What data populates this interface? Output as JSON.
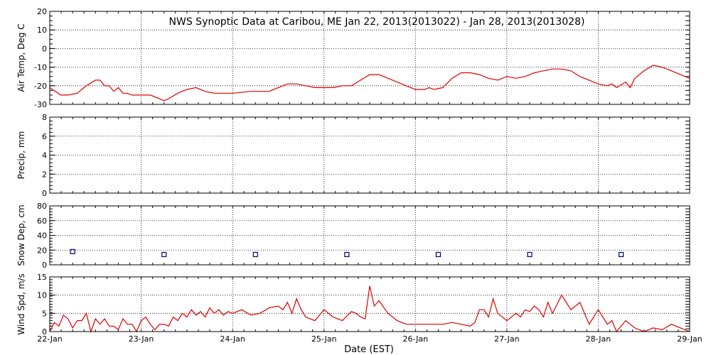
{
  "chart_data": {
    "type": "line",
    "title": "NWS Synoptic Data at Caribou, ME   Jan 22, 2013(2013022) - Jan 28, 2013(2013028)",
    "xlabel": "Date (EST)",
    "x_ticks": [
      "22-Jan",
      "23-Jan",
      "24-Jan",
      "25-Jan",
      "26-Jan",
      "27-Jan",
      "28-Jan",
      "29-Jan"
    ],
    "xlim_days": [
      0,
      7
    ],
    "grid": true,
    "colors": {
      "line": "#e00000",
      "marker": "#000080",
      "axis": "#000000"
    },
    "panels": [
      {
        "ylabel": "Air Temp, Deg C",
        "ylim": [
          -30,
          20
        ],
        "yticks": [
          20,
          10,
          0,
          -10,
          -20,
          -30
        ],
        "series": [
          {
            "style": "line",
            "x": [
              0,
              0.12,
              0.2,
              0.3,
              0.4,
              0.5,
              0.55,
              0.6,
              0.65,
              0.7,
              0.75,
              0.8,
              0.85,
              0.9,
              1.0,
              1.1,
              1.2,
              1.25,
              1.3,
              1.4,
              1.5,
              1.6,
              1.7,
              1.8,
              1.9,
              2.0,
              2.2,
              2.3,
              2.4,
              2.5,
              2.6,
              2.7,
              2.8,
              2.9,
              3.0,
              3.1,
              3.2,
              3.3,
              3.4,
              3.5,
              3.6,
              3.7,
              3.8,
              3.9,
              4.0,
              4.1,
              4.15,
              4.2,
              4.3,
              4.4,
              4.5,
              4.6,
              4.7,
              4.8,
              4.9,
              5.0,
              5.1,
              5.2,
              5.3,
              5.4,
              5.5,
              5.6,
              5.7,
              5.8,
              5.9,
              6.0,
              6.1,
              6.15,
              6.2,
              6.3,
              6.35,
              6.4,
              6.5,
              6.6,
              6.7,
              6.8,
              6.9,
              7.0
            ],
            "y": [
              -21,
              -25,
              -25,
              -24,
              -20,
              -17,
              -17,
              -20,
              -20,
              -23,
              -21,
              -24,
              -24,
              -25,
              -25,
              -25,
              -27,
              -28,
              -27,
              -24,
              -22,
              -21,
              -23,
              -24,
              -24,
              -24,
              -23,
              -23,
              -23,
              -21,
              -19,
              -19,
              -20,
              -21,
              -21,
              -21,
              -20,
              -20,
              -17,
              -14,
              -14,
              -16,
              -18,
              -20,
              -22,
              -22,
              -21,
              -22,
              -21,
              -16,
              -13,
              -13,
              -14,
              -16,
              -17,
              -15,
              -16,
              -15,
              -13,
              -12,
              -11,
              -11,
              -12,
              -15,
              -17,
              -19,
              -20,
              -19,
              -21,
              -18,
              -21,
              -16,
              -12,
              -9,
              -10,
              -12,
              -14,
              -16
            ]
          }
        ]
      },
      {
        "ylabel": "Precip, mm",
        "ylim": [
          0,
          8
        ],
        "yticks": [
          8,
          6,
          4,
          2,
          0
        ],
        "series": []
      },
      {
        "ylabel": "Snow Dep, cm",
        "ylim": [
          0,
          80
        ],
        "yticks": [
          80,
          60,
          40,
          20,
          0
        ],
        "series": [
          {
            "style": "marker",
            "x": [
              0.25,
              1.25,
              2.25,
              3.25,
              4.25,
              5.25,
              6.25
            ],
            "y": [
              18,
              14,
              14,
              14,
              14,
              14,
              14
            ]
          }
        ]
      },
      {
        "ylabel": "Wind Spd, m/s",
        "ylim": [
          0,
          15
        ],
        "yticks": [
          15,
          10,
          5,
          0
        ],
        "series": [
          {
            "style": "line",
            "x": [
              0,
              0.05,
              0.1,
              0.15,
              0.2,
              0.25,
              0.3,
              0.35,
              0.4,
              0.45,
              0.5,
              0.55,
              0.6,
              0.65,
              0.7,
              0.75,
              0.8,
              0.85,
              0.9,
              0.95,
              1.0,
              1.05,
              1.1,
              1.15,
              1.2,
              1.25,
              1.3,
              1.35,
              1.4,
              1.45,
              1.5,
              1.55,
              1.6,
              1.65,
              1.7,
              1.75,
              1.8,
              1.85,
              1.9,
              1.95,
              2.0,
              2.1,
              2.2,
              2.3,
              2.4,
              2.5,
              2.55,
              2.6,
              2.65,
              2.7,
              2.75,
              2.8,
              2.9,
              3.0,
              3.1,
              3.2,
              3.3,
              3.35,
              3.4,
              3.45,
              3.5,
              3.55,
              3.6,
              3.7,
              3.8,
              3.9,
              4.0,
              4.1,
              4.2,
              4.3,
              4.4,
              4.5,
              4.6,
              4.65,
              4.7,
              4.75,
              4.8,
              4.85,
              4.9,
              5.0,
              5.1,
              5.15,
              5.2,
              5.25,
              5.3,
              5.35,
              5.4,
              5.45,
              5.5,
              5.6,
              5.7,
              5.75,
              5.8,
              5.9,
              6.0,
              6.05,
              6.1,
              6.15,
              6.2,
              6.3,
              6.4,
              6.5,
              6.6,
              6.7,
              6.8,
              6.9,
              7.0
            ],
            "y": [
              0,
              2.5,
              1.5,
              4.5,
              3.5,
              1,
              3,
              3,
              5,
              0,
              3.5,
              2,
              3.5,
              1.5,
              1.5,
              0.5,
              3.5,
              2,
              2,
              0,
              3,
              4,
              2,
              0.5,
              2,
              2,
              1.5,
              4,
              3,
              5,
              4,
              6,
              4.5,
              5.5,
              4,
              6.5,
              5,
              6,
              4.5,
              5.5,
              5,
              6,
              4.5,
              5,
              6.5,
              7,
              6,
              8,
              5,
              9,
              6,
              4,
              3,
              6,
              4,
              3,
              5.5,
              5,
              4,
              3.5,
              12.5,
              7,
              8.5,
              5,
              3,
              2,
              2,
              2,
              2,
              2,
              2.5,
              2,
              1.5,
              2.5,
              6,
              6,
              4,
              9,
              5,
              3,
              5,
              4,
              6,
              5.5,
              7,
              6,
              4,
              8,
              5,
              10,
              6,
              7,
              8,
              2,
              6,
              4,
              2,
              3,
              0,
              3,
              1,
              0,
              1,
              0.5,
              2,
              1,
              0
            ]
          }
        ]
      }
    ]
  }
}
